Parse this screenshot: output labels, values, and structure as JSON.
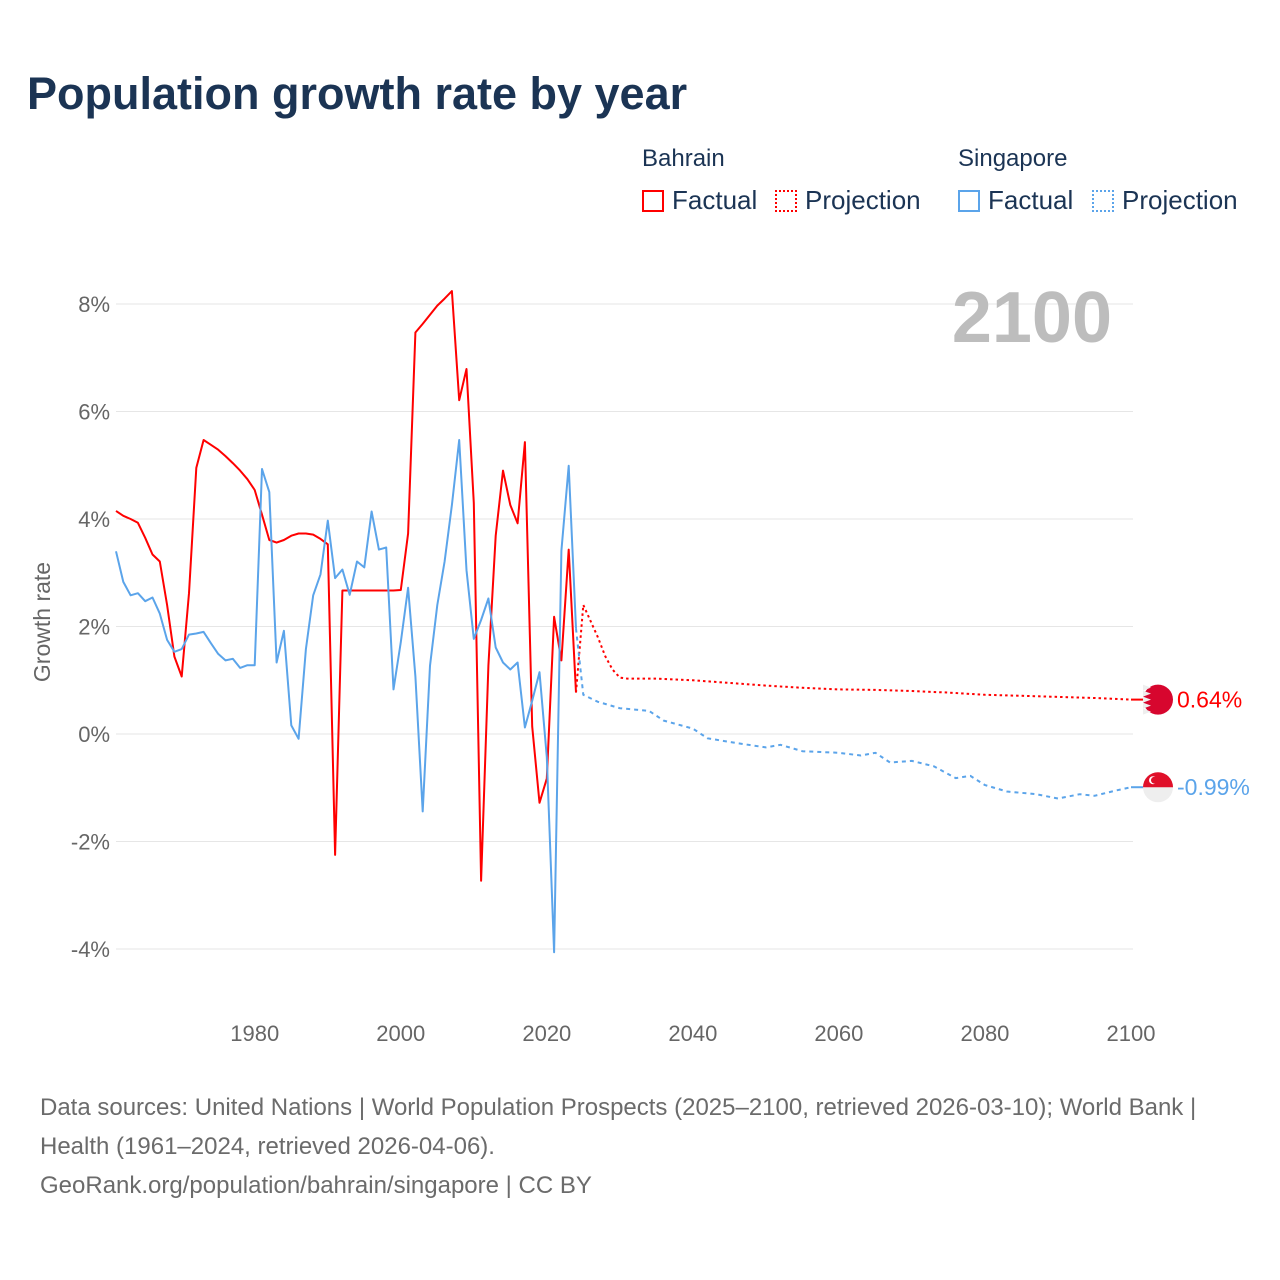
{
  "title": "Population growth rate by year",
  "legend": {
    "groups": [
      {
        "name": "Bahrain",
        "color": "#ff0000",
        "factual_label": "Factual",
        "projection_label": "Projection"
      },
      {
        "name": "Singapore",
        "color": "#5ba4ea",
        "factual_label": "Factual",
        "projection_label": "Projection"
      }
    ]
  },
  "chart_data": {
    "type": "line",
    "title": "Population growth rate by year",
    "xlabel": "",
    "ylabel": "Growth rate",
    "xlim": [
      1961,
      2100
    ],
    "ylim": [
      -4,
      8
    ],
    "x_ticks": [
      1980,
      2000,
      2020,
      2040,
      2060,
      2080,
      2100
    ],
    "x_tick_labels": [
      "1980",
      "2000",
      "2020",
      "2040",
      "2060",
      "2080",
      "2100"
    ],
    "y_ticks": [
      8,
      6,
      4,
      2,
      0,
      -2,
      -4
    ],
    "y_tick_labels": [
      "8%",
      "6%",
      "4%",
      "2%",
      "0%",
      "-2%",
      "-4%"
    ],
    "grid": true,
    "year_label": "2100",
    "series": [
      {
        "name": "Bahrain Factual",
        "color": "#ff0000",
        "style": "solid",
        "x": [
          1961,
          1962,
          1963,
          1964,
          1965,
          1966,
          1967,
          1968,
          1969,
          1970,
          1971,
          1972,
          1973,
          1974,
          1975,
          1976,
          1977,
          1978,
          1979,
          1980,
          1981,
          1982,
          1983,
          1984,
          1985,
          1986,
          1987,
          1988,
          1989,
          1990,
          1991,
          1992,
          1993,
          1994,
          1995,
          1996,
          1997,
          1998,
          1999,
          2000,
          2001,
          2002,
          2003,
          2004,
          2005,
          2006,
          2007,
          2008,
          2009,
          2010,
          2011,
          2012,
          2013,
          2014,
          2015,
          2016,
          2017,
          2018,
          2019,
          2020,
          2021,
          2022,
          2023,
          2024
        ],
        "y": [
          4.15,
          4.06,
          4.0,
          3.93,
          3.65,
          3.34,
          3.21,
          2.4,
          1.44,
          1.07,
          2.62,
          4.95,
          5.47,
          5.38,
          5.29,
          5.17,
          5.04,
          4.9,
          4.74,
          4.54,
          4.08,
          3.61,
          3.56,
          3.61,
          3.69,
          3.73,
          3.73,
          3.71,
          3.63,
          3.53,
          -2.25,
          2.67,
          2.67,
          2.67,
          2.67,
          2.67,
          2.67,
          2.67,
          2.67,
          2.68,
          3.73,
          7.47,
          7.63,
          7.8,
          7.97,
          8.1,
          8.24,
          6.21,
          6.79,
          4.3,
          -2.73,
          1.27,
          3.69,
          4.9,
          4.26,
          3.92,
          5.43,
          0.14,
          -1.28,
          -0.83,
          2.18,
          1.37,
          3.43,
          0.77
        ]
      },
      {
        "name": "Bahrain Projection",
        "color": "#ff0000",
        "style": "dotted",
        "x": [
          2024,
          2025,
          2026,
          2027,
          2028,
          2029,
          2030,
          2031,
          2035,
          2040,
          2045,
          2050,
          2055,
          2060,
          2065,
          2070,
          2075,
          2080,
          2085,
          2090,
          2095,
          2100
        ],
        "y": [
          0.77,
          2.4,
          2.1,
          1.8,
          1.45,
          1.2,
          1.05,
          1.03,
          1.03,
          1.0,
          0.95,
          0.9,
          0.86,
          0.83,
          0.82,
          0.8,
          0.77,
          0.73,
          0.71,
          0.69,
          0.67,
          0.64
        ],
        "end_label": "0.64%"
      },
      {
        "name": "Singapore Factual",
        "color": "#5ba4ea",
        "style": "solid",
        "x": [
          1961,
          1962,
          1963,
          1964,
          1965,
          1966,
          1967,
          1968,
          1969,
          1970,
          1971,
          1972,
          1973,
          1974,
          1975,
          1976,
          1977,
          1978,
          1979,
          1980,
          1981,
          1982,
          1983,
          1984,
          1985,
          1986,
          1987,
          1988,
          1989,
          1990,
          1991,
          1992,
          1993,
          1994,
          1995,
          1996,
          1997,
          1998,
          1999,
          2000,
          2001,
          2002,
          2003,
          2004,
          2005,
          2006,
          2007,
          2008,
          2009,
          2010,
          2011,
          2012,
          2013,
          2014,
          2015,
          2016,
          2017,
          2018,
          2019,
          2020,
          2021,
          2022,
          2023,
          2024
        ],
        "y": [
          3.4,
          2.83,
          2.58,
          2.62,
          2.47,
          2.54,
          2.24,
          1.75,
          1.53,
          1.58,
          1.85,
          1.87,
          1.9,
          1.69,
          1.49,
          1.37,
          1.4,
          1.23,
          1.28,
          1.28,
          4.93,
          4.5,
          1.33,
          1.92,
          0.16,
          -0.09,
          1.58,
          2.58,
          2.97,
          3.97,
          2.9,
          3.06,
          2.59,
          3.21,
          3.1,
          4.14,
          3.43,
          3.47,
          0.83,
          1.71,
          2.72,
          1.07,
          -1.44,
          1.27,
          2.4,
          3.21,
          4.26,
          5.47,
          3.05,
          1.77,
          2.12,
          2.52,
          1.61,
          1.33,
          1.2,
          1.33,
          0.12,
          0.62,
          1.15,
          -0.43,
          -4.06,
          3.41,
          4.99,
          1.96
        ]
      },
      {
        "name": "Singapore Projection",
        "color": "#5ba4ea",
        "style": "dashed",
        "x": [
          2024,
          2025,
          2027,
          2030,
          2034,
          2036,
          2040,
          2042,
          2046,
          2050,
          2052,
          2055,
          2060,
          2063,
          2065,
          2067,
          2070,
          2073,
          2076,
          2078,
          2080,
          2083,
          2087,
          2090,
          2093,
          2095,
          2098,
          2100
        ],
        "y": [
          1.96,
          0.73,
          0.6,
          0.48,
          0.43,
          0.25,
          0.1,
          -0.08,
          -0.17,
          -0.25,
          -0.2,
          -0.32,
          -0.35,
          -0.4,
          -0.35,
          -0.53,
          -0.5,
          -0.6,
          -0.82,
          -0.78,
          -0.95,
          -1.07,
          -1.12,
          -1.2,
          -1.12,
          -1.15,
          -1.05,
          -0.99
        ],
        "end_label": "-0.99%"
      }
    ]
  },
  "footer": {
    "sources": "Data sources: United Nations | World Population Prospects (2025–2100, retrieved 2026-03-10); World Bank | Health (1961–2024, retrieved 2026-04-06).",
    "attribution": "GeoRank.org/population/bahrain/singapore | CC BY"
  }
}
